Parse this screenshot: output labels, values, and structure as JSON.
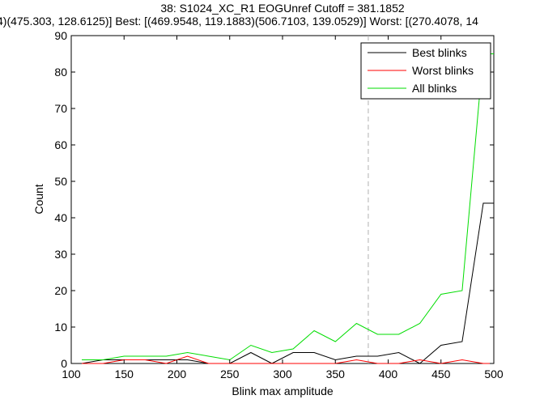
{
  "chart_data": {
    "type": "line",
    "title_line1": "38: S1024_XC_R1 EOGUnref Cutoff = 381.1852",
    "title_line2": "4)(475.303, 128.6125)] Best: [(469.9548, 119.1883)(506.7103, 139.0529)] Worst: [(270.4078, 14",
    "xlabel": "Blink max amplitude",
    "ylabel": "Count",
    "xlim": [
      100,
      500
    ],
    "ylim": [
      0,
      90
    ],
    "xticks": [
      "100",
      "150",
      "200",
      "250",
      "300",
      "350",
      "400",
      "450",
      "500"
    ],
    "yticks": [
      "0",
      "10",
      "20",
      "30",
      "40",
      "50",
      "60",
      "70",
      "80",
      "90"
    ],
    "grid": false,
    "legend_position": "top-right",
    "cutoff_x": 381.1852,
    "x": [
      110,
      130,
      150,
      170,
      190,
      210,
      230,
      250,
      270,
      290,
      310,
      330,
      350,
      370,
      390,
      410,
      430,
      450,
      470,
      490,
      500
    ],
    "series": [
      {
        "name": "Best blinks",
        "color": "#000000",
        "values": [
          0,
          1,
          1,
          1,
          1,
          1,
          0,
          0,
          3,
          0,
          3,
          3,
          1,
          2,
          2,
          3,
          0,
          5,
          6,
          44,
          44
        ]
      },
      {
        "name": "Worst blinks",
        "color": "#ff0000",
        "values": [
          0,
          0,
          1,
          1,
          0,
          2,
          0,
          0,
          0,
          0,
          0,
          0,
          0,
          1,
          0,
          0,
          1,
          0,
          1,
          0,
          0
        ]
      },
      {
        "name": "All blinks",
        "color": "#00dd00",
        "values": [
          1,
          1,
          2,
          2,
          2,
          3,
          2,
          1,
          5,
          3,
          4,
          9,
          6,
          11,
          8,
          8,
          11,
          19,
          20,
          85,
          85
        ]
      }
    ]
  }
}
